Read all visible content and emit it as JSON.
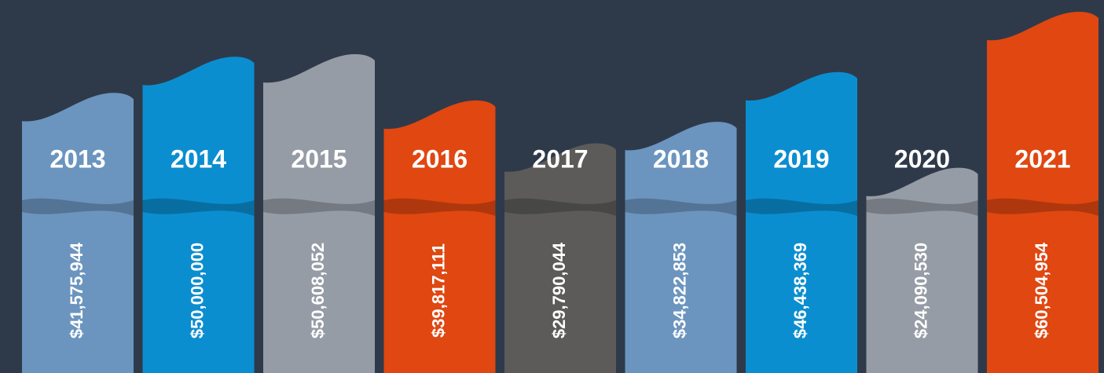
{
  "chart_data": {
    "type": "bar",
    "categories": [
      "2013",
      "2014",
      "2015",
      "2016",
      "2017",
      "2018",
      "2019",
      "2020",
      "2021"
    ],
    "values": [
      41575944,
      50000000,
      50608052,
      39817111,
      29790044,
      34822853,
      46438369,
      24090530,
      60504954
    ],
    "value_labels": [
      "$41,575,944",
      "$50,000,000",
      "$50,608,052",
      "$39,817,111",
      "$29,790,044",
      "$34,822,853",
      "$46,438,369",
      "$24,090,530",
      "$60,504,954"
    ],
    "colors": [
      "#6b95bf",
      "#0b8ed0",
      "#969ca6",
      "#e04711",
      "#5c5b5a",
      "#6b95bf",
      "#0b8ed0",
      "#969ca6",
      "#e04711"
    ]
  }
}
